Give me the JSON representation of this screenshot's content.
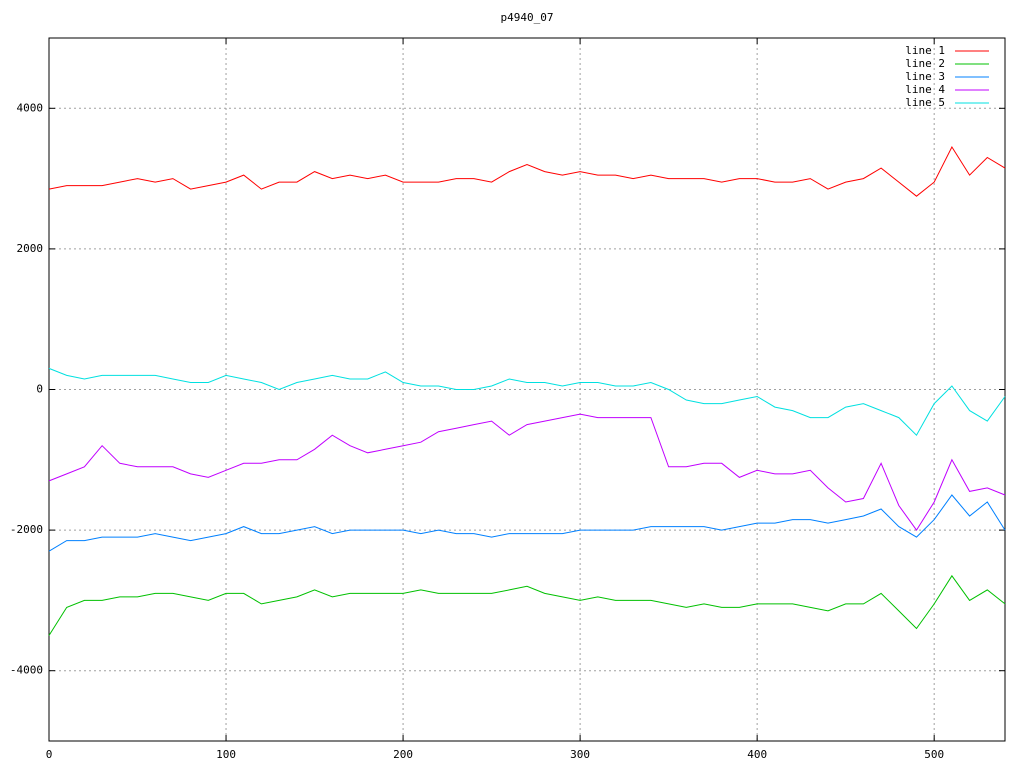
{
  "chart_data": {
    "type": "line",
    "title": "p4940_07",
    "x": [
      0,
      10,
      20,
      30,
      40,
      50,
      60,
      70,
      80,
      90,
      100,
      110,
      120,
      130,
      140,
      150,
      160,
      170,
      180,
      190,
      200,
      210,
      220,
      230,
      240,
      250,
      260,
      270,
      280,
      290,
      300,
      310,
      320,
      330,
      340,
      350,
      360,
      370,
      380,
      390,
      400,
      410,
      420,
      430,
      440,
      450,
      460,
      470,
      480,
      490,
      500,
      510,
      520,
      530,
      540
    ],
    "series": [
      {
        "name": "line 1",
        "color": "#ff0000",
        "values": [
          2850,
          2900,
          2900,
          2900,
          2950,
          3000,
          2950,
          3000,
          2850,
          2900,
          2950,
          3050,
          2850,
          2950,
          2950,
          3100,
          3000,
          3050,
          3000,
          3050,
          2950,
          2950,
          2950,
          3000,
          3000,
          2950,
          3100,
          3200,
          3100,
          3050,
          3100,
          3050,
          3050,
          3000,
          3050,
          3000,
          3000,
          3000,
          2950,
          3000,
          3000,
          2950,
          2950,
          3000,
          2850,
          2950,
          3000,
          3150,
          2950,
          2750,
          2950,
          3450,
          3050,
          3300,
          3150
        ]
      },
      {
        "name": "line 2",
        "color": "#00c000",
        "values": [
          -3500,
          -3100,
          -3000,
          -3000,
          -2950,
          -2950,
          -2900,
          -2900,
          -2950,
          -3000,
          -2900,
          -2900,
          -3050,
          -3000,
          -2950,
          -2850,
          -2950,
          -2900,
          -2900,
          -2900,
          -2900,
          -2850,
          -2900,
          -2900,
          -2900,
          -2900,
          -2850,
          -2800,
          -2900,
          -2950,
          -3000,
          -2950,
          -3000,
          -3000,
          -3000,
          -3050,
          -3100,
          -3050,
          -3100,
          -3100,
          -3050,
          -3050,
          -3050,
          -3100,
          -3150,
          -3050,
          -3050,
          -2900,
          -3150,
          -3400,
          -3050,
          -2650,
          -3000,
          -2850,
          -3050
        ]
      },
      {
        "name": "line 3",
        "color": "#0080ff",
        "values": [
          -2300,
          -2150,
          -2150,
          -2100,
          -2100,
          -2100,
          -2050,
          -2100,
          -2150,
          -2100,
          -2050,
          -1950,
          -2050,
          -2050,
          -2000,
          -1950,
          -2050,
          -2000,
          -2000,
          -2000,
          -2000,
          -2050,
          -2000,
          -2050,
          -2050,
          -2100,
          -2050,
          -2050,
          -2050,
          -2050,
          -2000,
          -2000,
          -2000,
          -2000,
          -1950,
          -1950,
          -1950,
          -1950,
          -2000,
          -1950,
          -1900,
          -1900,
          -1850,
          -1850,
          -1900,
          -1850,
          -1800,
          -1700,
          -1950,
          -2100,
          -1850,
          -1500,
          -1800,
          -1600,
          -2000
        ]
      },
      {
        "name": "line 4",
        "color": "#c000ff",
        "values": [
          -1300,
          -1200,
          -1100,
          -800,
          -1050,
          -1100,
          -1100,
          -1100,
          -1200,
          -1250,
          -1150,
          -1050,
          -1050,
          -1000,
          -1000,
          -850,
          -650,
          -800,
          -900,
          -850,
          -800,
          -750,
          -600,
          -550,
          -500,
          -450,
          -650,
          -500,
          -450,
          -400,
          -350,
          -400,
          -400,
          -400,
          -400,
          -1100,
          -1100,
          -1050,
          -1050,
          -1250,
          -1150,
          -1200,
          -1200,
          -1150,
          -1400,
          -1600,
          -1550,
          -1050,
          -1650,
          -2000,
          -1600,
          -1000,
          -1450,
          -1400,
          -1500
        ]
      },
      {
        "name": "line 5",
        "color": "#00e0e0",
        "values": [
          300,
          200,
          150,
          200,
          200,
          200,
          200,
          150,
          100,
          100,
          200,
          150,
          100,
          0,
          100,
          150,
          200,
          150,
          150,
          250,
          100,
          50,
          50,
          0,
          0,
          50,
          150,
          100,
          100,
          50,
          100,
          100,
          50,
          50,
          100,
          0,
          -150,
          -200,
          -200,
          -150,
          -100,
          -250,
          -300,
          -400,
          -400,
          -250,
          -200,
          -300,
          -400,
          -650,
          -200,
          50,
          -300,
          -450,
          -100
        ]
      }
    ],
    "xlim": [
      0,
      540
    ],
    "xticks": [
      0,
      100,
      200,
      300,
      400,
      500
    ],
    "ylim": [
      -5000,
      5000
    ],
    "yticks": [
      -4000,
      -2000,
      0,
      2000,
      4000
    ],
    "grid": true,
    "legend": "top-right"
  }
}
